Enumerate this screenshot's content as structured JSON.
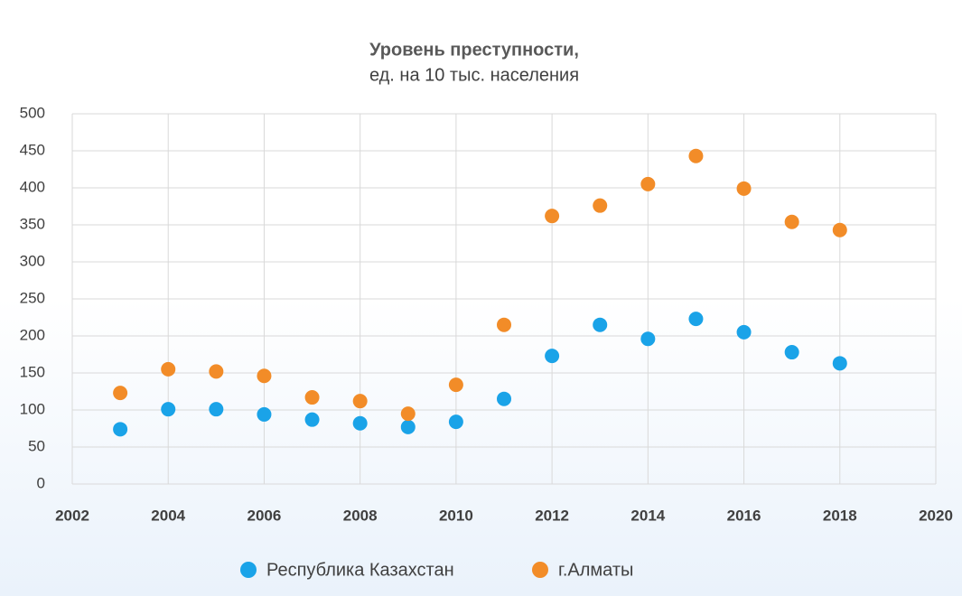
{
  "chart_data": {
    "type": "scatter",
    "title": "Уровень преступности,",
    "subtitle": "ед. на 10 тыс. населения",
    "xlim": [
      2002,
      2020
    ],
    "xticks": [
      2002,
      2004,
      2006,
      2008,
      2010,
      2012,
      2014,
      2016,
      2018,
      2020
    ],
    "ylim": [
      0,
      500
    ],
    "yticks": [
      0,
      50,
      100,
      150,
      200,
      250,
      300,
      350,
      400,
      450,
      500
    ],
    "grid": true,
    "legend": "bottom",
    "series": [
      {
        "name": "Республика Казахстан",
        "color": "#1aa3e8",
        "x": [
          2003,
          2004,
          2005,
          2006,
          2007,
          2008,
          2009,
          2010,
          2011,
          2012,
          2013,
          2014,
          2015,
          2016,
          2017,
          2018
        ],
        "values": [
          74,
          101,
          101,
          94,
          87,
          82,
          77,
          84,
          115,
          173,
          215,
          196,
          223,
          205,
          178,
          163
        ]
      },
      {
        "name": "г.Алматы",
        "color": "#f28c28",
        "x": [
          2003,
          2004,
          2005,
          2006,
          2007,
          2008,
          2009,
          2010,
          2011,
          2012,
          2013,
          2014,
          2015,
          2016,
          2017,
          2018
        ],
        "values": [
          123,
          155,
          152,
          146,
          117,
          112,
          95,
          134,
          215,
          362,
          376,
          405,
          443,
          399,
          354,
          343
        ]
      }
    ]
  }
}
